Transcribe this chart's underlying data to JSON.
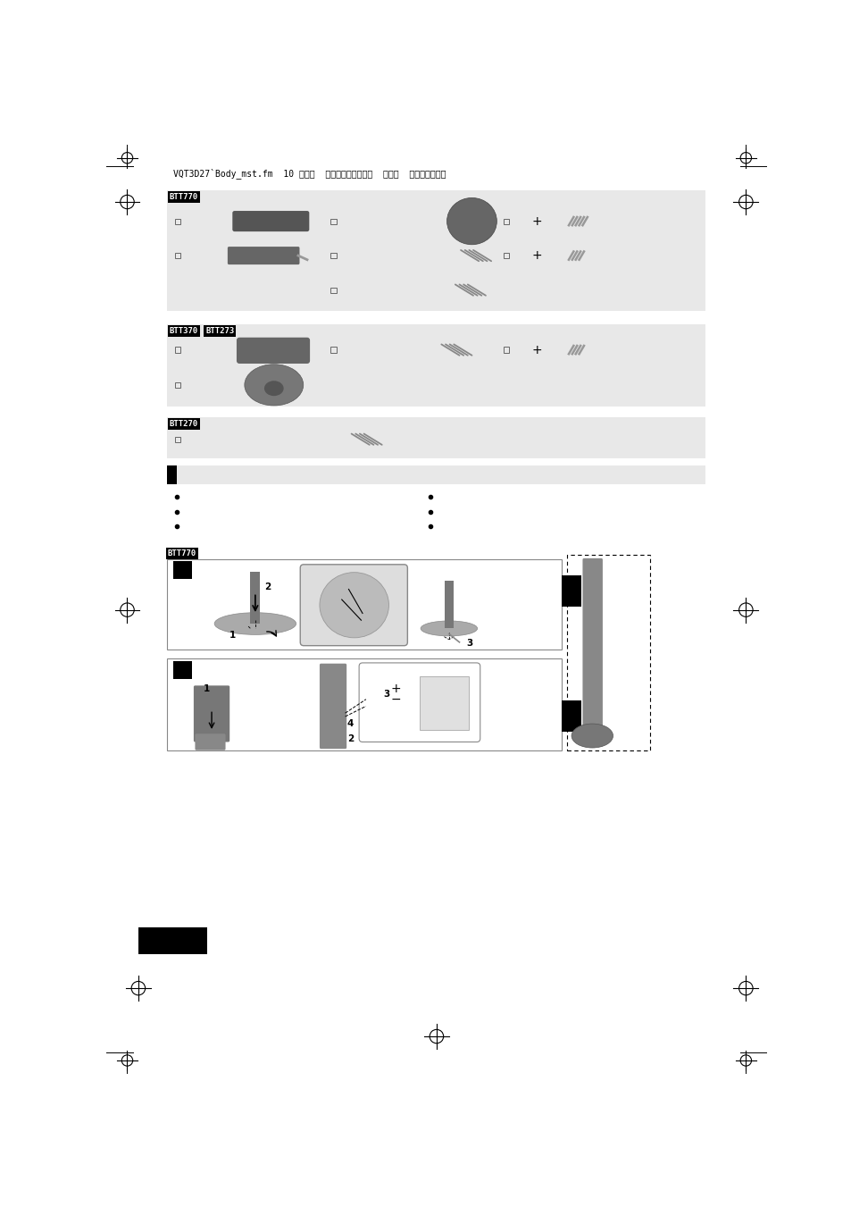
{
  "page_bg": "#ffffff",
  "section_bg": "#e8e8e8",
  "header_text": "VQT3D27`Body_mst.fm  10 ページ  ２０１１年１月６日  木曜日  午後１時３３分",
  "label_BTT770": "BTT770",
  "label_BTT370": "BTT370",
  "label_BTT273": "BTT273",
  "label_BTT270": "BTT270",
  "black": "#000000",
  "dark_gray": "#555555",
  "mid_gray": "#888888",
  "light_gray": "#aaaaaa",
  "section_color": "#e8e8e8"
}
